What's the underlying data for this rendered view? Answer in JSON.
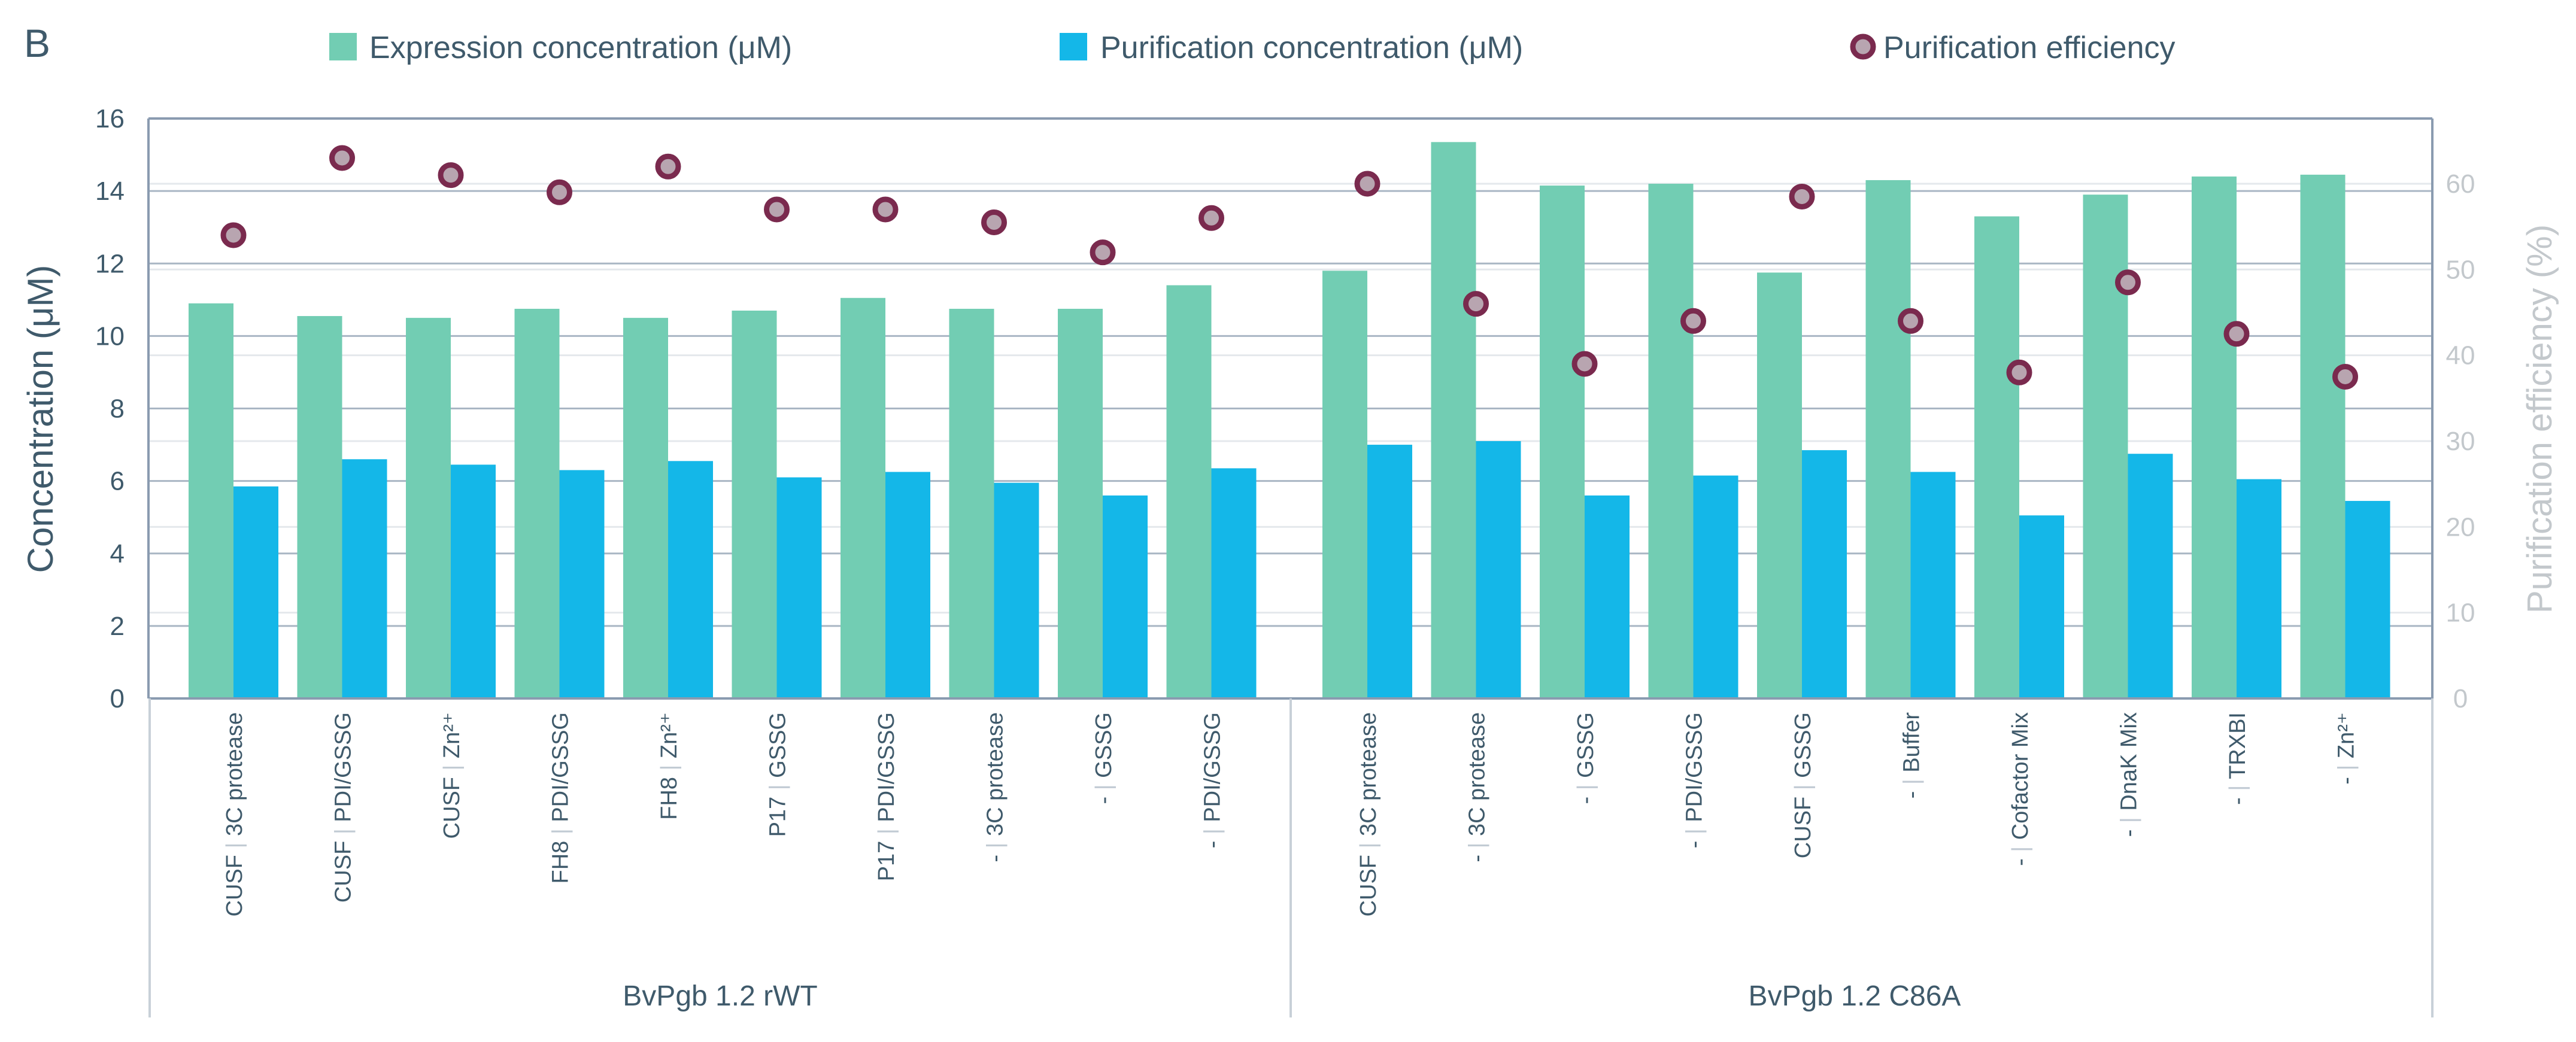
{
  "panel_label": "B",
  "colors": {
    "expression": "#72cdb3",
    "purification": "#14b7e8",
    "efficiency_fill": "#b8a5b0",
    "efficiency_stroke": "#7a2a4e",
    "axis": "#8a9bb0",
    "text": "#3f5a6b",
    "right_axis_text": "#c3c8cc"
  },
  "chart_data": {
    "type": "bar",
    "ylabel": "Concentration (μM)",
    "y2label": "Purification efficiency (%)",
    "ylim": [
      0,
      16
    ],
    "yticks": [
      "0",
      "2",
      "4",
      "6",
      "8",
      "10",
      "12",
      "14",
      "16"
    ],
    "y2lim": [
      0,
      67.6
    ],
    "y2ticks": [
      "0",
      "10",
      "20",
      "30",
      "40",
      "50",
      "60"
    ],
    "legend": [
      {
        "name": "Expression concentration (μM)",
        "kind": "bar"
      },
      {
        "name": "Purification concentration (μM)",
        "kind": "bar"
      },
      {
        "name": "Purification efficiency",
        "kind": "marker"
      }
    ],
    "groups": [
      {
        "name": "BvPgb 1.2 rWT",
        "categories": [
          {
            "pre": "CUSF",
            "post": "3C protease"
          },
          {
            "pre": "CUSF",
            "post": "PDI/GSSG"
          },
          {
            "pre": "CUSF",
            "post": "Zn²⁺"
          },
          {
            "pre": "FH8",
            "post": "PDI/GSSG"
          },
          {
            "pre": "FH8",
            "post": "Zn²⁺"
          },
          {
            "pre": "P17",
            "post": "GSSG"
          },
          {
            "pre": "P17",
            "post": "PDI/GSSG"
          },
          {
            "pre": "-",
            "post": "3C protease"
          },
          {
            "pre": "-",
            "post": "GSSG"
          },
          {
            "pre": "-",
            "post": "PDI/GSSG"
          }
        ],
        "expression": [
          10.9,
          10.55,
          10.5,
          10.75,
          10.5,
          10.7,
          11.05,
          10.75,
          10.75,
          11.4
        ],
        "purification": [
          5.85,
          6.6,
          6.45,
          6.3,
          6.55,
          6.1,
          6.25,
          5.95,
          5.6,
          6.35
        ],
        "efficiency": [
          54,
          63,
          61,
          59,
          62,
          57,
          57,
          55.5,
          52,
          56
        ]
      },
      {
        "name": "BvPgb 1.2 C86A",
        "categories": [
          {
            "pre": "CUSF",
            "post": "3C protease"
          },
          {
            "pre": "-",
            "post": "3C protease"
          },
          {
            "pre": "-",
            "post": "GSSG"
          },
          {
            "pre": "-",
            "post": "PDI/GSSG"
          },
          {
            "pre": "CUSF",
            "post": "GSSG"
          },
          {
            "pre": "-",
            "post": "Buffer"
          },
          {
            "pre": "-",
            "post": "Cofactor Mix"
          },
          {
            "pre": "-",
            "post": "DnaK Mix"
          },
          {
            "pre": "-",
            "post": "TRXBI"
          },
          {
            "pre": "-",
            "post": "Zn²⁺"
          }
        ],
        "expression": [
          11.8,
          15.35,
          14.15,
          14.2,
          11.75,
          14.3,
          13.3,
          13.9,
          14.4,
          14.45
        ],
        "purification": [
          7.0,
          7.1,
          5.6,
          6.15,
          6.85,
          6.25,
          5.05,
          6.75,
          6.05,
          5.45
        ],
        "efficiency": [
          60,
          46,
          39,
          44,
          58.5,
          44,
          38,
          48.5,
          42.5,
          37.5
        ]
      }
    ]
  }
}
